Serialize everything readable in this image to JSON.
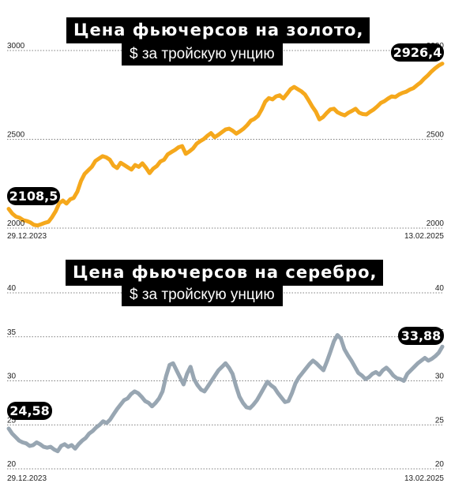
{
  "chart_data": [
    {
      "type": "line",
      "title": "Цена фьючерсов на золото,",
      "subtitle": "$ за тройскую унцию",
      "xlabel": "",
      "ylabel": "",
      "x_start": "29.12.2023",
      "x_end": "13.02.2025",
      "yticks": [
        "3000",
        "2500",
        "2000"
      ],
      "ylim": [
        2000,
        3000
      ],
      "grid": true,
      "color": "#f5a81c",
      "start_value": 2108.5,
      "end_value": 2926.4,
      "start_label": "2108,5",
      "end_label": "2926,4",
      "series": [
        {
          "values": [
            2108.5,
            2082,
            2065,
            2058,
            2045,
            2040,
            2032,
            2018,
            2015,
            2022,
            2030,
            2035,
            2062,
            2095,
            2140,
            2155,
            2138,
            2162,
            2170,
            2205,
            2265,
            2305,
            2325,
            2345,
            2378,
            2392,
            2405,
            2398,
            2385,
            2352,
            2338,
            2368,
            2355,
            2342,
            2330,
            2355,
            2345,
            2365,
            2340,
            2310,
            2335,
            2350,
            2375,
            2385,
            2415,
            2428,
            2440,
            2455,
            2462,
            2418,
            2432,
            2448,
            2475,
            2490,
            2502,
            2520,
            2535,
            2512,
            2525,
            2540,
            2555,
            2560,
            2548,
            2532,
            2545,
            2560,
            2580,
            2605,
            2615,
            2632,
            2668,
            2712,
            2732,
            2725,
            2742,
            2748,
            2730,
            2755,
            2782,
            2795,
            2782,
            2770,
            2752,
            2720,
            2685,
            2655,
            2612,
            2625,
            2648,
            2668,
            2672,
            2652,
            2642,
            2635,
            2650,
            2660,
            2672,
            2650,
            2642,
            2640,
            2655,
            2668,
            2685,
            2705,
            2715,
            2730,
            2742,
            2738,
            2752,
            2762,
            2768,
            2780,
            2788,
            2805,
            2820,
            2842,
            2860,
            2882,
            2900,
            2915,
            2926.4
          ]
        }
      ]
    },
    {
      "type": "line",
      "title": "Цена фьючерсов на серебро,",
      "subtitle": "$ за тройскую унцию",
      "xlabel": "",
      "ylabel": "",
      "x_start": "29.12.2023",
      "x_end": "13.02.2025",
      "yticks": [
        "40",
        "35",
        "30",
        "25",
        "20"
      ],
      "ylim": [
        20,
        40
      ],
      "grid": true,
      "color": "#98a6b2",
      "start_value": 24.58,
      "end_value": 33.88,
      "start_label": "24,58",
      "end_label": "33,88",
      "series": [
        {
          "values": [
            24.58,
            24.0,
            23.6,
            23.2,
            23.0,
            22.9,
            22.6,
            22.7,
            23.0,
            22.8,
            22.5,
            22.4,
            22.5,
            22.2,
            22.0,
            22.6,
            22.8,
            22.5,
            22.7,
            22.3,
            22.8,
            23.2,
            23.5,
            24.0,
            24.3,
            24.7,
            25.0,
            25.4,
            25.2,
            25.6,
            26.2,
            26.8,
            27.3,
            27.8,
            28.0,
            28.5,
            28.8,
            28.6,
            28.2,
            27.7,
            27.5,
            27.1,
            27.5,
            28.0,
            28.8,
            30.5,
            31.8,
            32.0,
            31.2,
            30.4,
            29.6,
            30.8,
            31.6,
            30.2,
            29.5,
            29.0,
            28.8,
            29.4,
            30.0,
            30.6,
            31.2,
            31.6,
            32.0,
            31.5,
            30.8,
            29.4,
            28.2,
            27.5,
            27.0,
            26.9,
            27.3,
            27.8,
            28.5,
            29.2,
            29.9,
            29.5,
            29.2,
            28.6,
            28.1,
            27.6,
            27.7,
            28.6,
            29.7,
            30.4,
            30.9,
            31.4,
            31.9,
            32.3,
            32.0,
            31.6,
            31.2,
            32.2,
            33.3,
            34.5,
            35.2,
            34.8,
            33.6,
            32.9,
            32.3,
            31.6,
            30.9,
            30.6,
            30.2,
            30.4,
            30.8,
            31.0,
            30.7,
            31.2,
            31.5,
            31.1,
            30.6,
            30.3,
            30.2,
            30.0,
            30.8,
            31.2,
            31.6,
            32.0,
            32.3,
            32.6,
            32.3,
            32.5,
            32.8,
            33.2,
            33.88
          ]
        }
      ]
    }
  ]
}
